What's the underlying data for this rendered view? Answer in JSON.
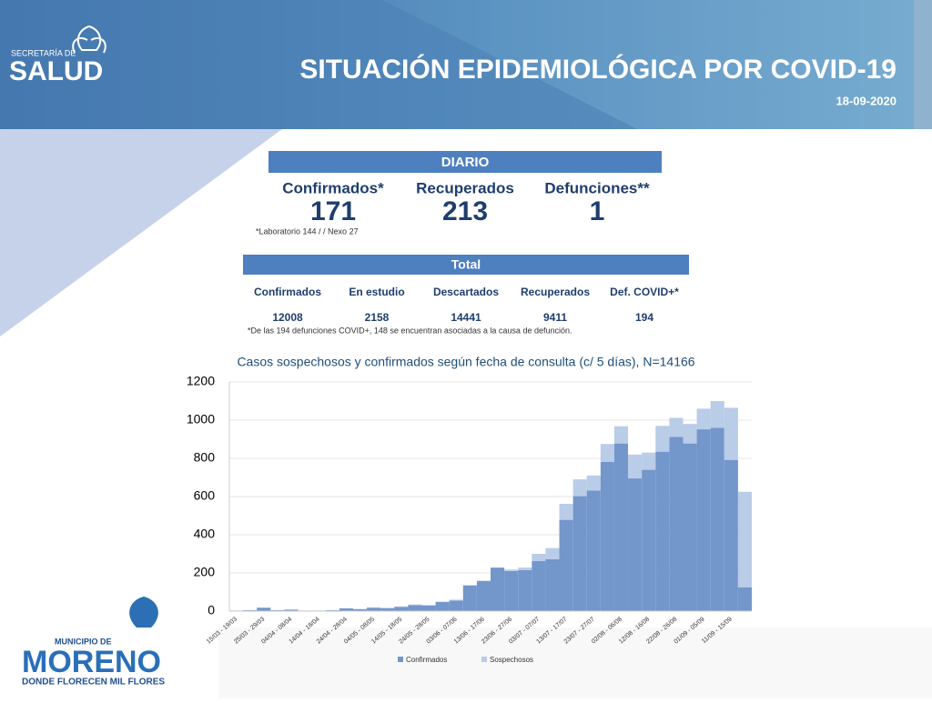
{
  "header": {
    "logo_top": "SECRETARÍA DE",
    "logo_name": "SALUD",
    "title": "SITUACIÓN EPIDEMIOLÓGICA POR COVID-19",
    "date": "18-09-2020"
  },
  "daily": {
    "title": "DIARIO",
    "items": [
      {
        "label": "Confirmados*",
        "value": 171
      },
      {
        "label": "Recuperados",
        "value": 213
      },
      {
        "label": "Defunciones**",
        "value": 1
      }
    ],
    "note": "*Laboratorio 144 / / Nexo 27"
  },
  "total": {
    "title": "Total",
    "columns": [
      {
        "label": "Confirmados",
        "value": 12008
      },
      {
        "label": "En estudio",
        "value": 2158
      },
      {
        "label": "Descartados",
        "value": 14441
      },
      {
        "label": "Recuperados",
        "value": 9411
      },
      {
        "label": "Def. COVID+*",
        "value": 194
      }
    ],
    "note": "*De las 194 defunciones COVID+, 148 se encuentran asociadas a la causa de defunción."
  },
  "footer": {
    "top": "MUNICIPIO DE",
    "name": "MORENO",
    "slogan": "DONDE FLORECEN MIL FLORES"
  },
  "chart_data": {
    "type": "stacked_bar",
    "title": "Casos sospechosos y confirmados según fecha de consulta (c/ 5 días), N=14166",
    "categories": [
      "15/03 - 19/03",
      null,
      "25/03 - 29/03",
      null,
      "04/04 - 08/04",
      null,
      "14/04 - 18/04",
      null,
      "24/04 - 28/04",
      null,
      "04/05 - 08/05",
      null,
      "14/05 - 18/05",
      null,
      "24/05 - 28/05",
      null,
      "03/06 - 07/06",
      null,
      "13/06 - 17/06",
      null,
      "23/06 - 27/06",
      null,
      "03/07 - 07/07",
      null,
      "13/07 - 17/07",
      null,
      "23/07 - 27/07",
      null,
      "02/08 - 06/08",
      null,
      "12/08 - 16/08",
      null,
      "22/08 - 26/08",
      null,
      "01/09 - 05/09",
      null,
      "11/09 - 15/09",
      null
    ],
    "series": [
      {
        "name": "Confirmados",
        "color": "#7396cb",
        "values": [
          3,
          5,
          18,
          5,
          8,
          3,
          3,
          5,
          15,
          10,
          18,
          15,
          22,
          32,
          30,
          48,
          55,
          135,
          158,
          228,
          210,
          215,
          262,
          272,
          478,
          602,
          632,
          782,
          878,
          695,
          740,
          835,
          912,
          878,
          952,
          960,
          792,
          125
        ]
      },
      {
        "name": "Sospechosos",
        "color": "#b9cce8",
        "values": [
          0,
          0,
          0,
          0,
          0,
          0,
          0,
          0,
          0,
          2,
          2,
          3,
          3,
          3,
          2,
          2,
          5,
          0,
          2,
          0,
          8,
          13,
          38,
          58,
          84,
          88,
          78,
          93,
          90,
          125,
          90,
          135,
          100,
          102,
          108,
          140,
          273,
          500
        ]
      }
    ],
    "ylim": [
      0,
      1200
    ],
    "yticks": [
      0,
      200,
      400,
      600,
      800,
      1000,
      1200
    ],
    "grid": true,
    "legend": "bottom"
  }
}
